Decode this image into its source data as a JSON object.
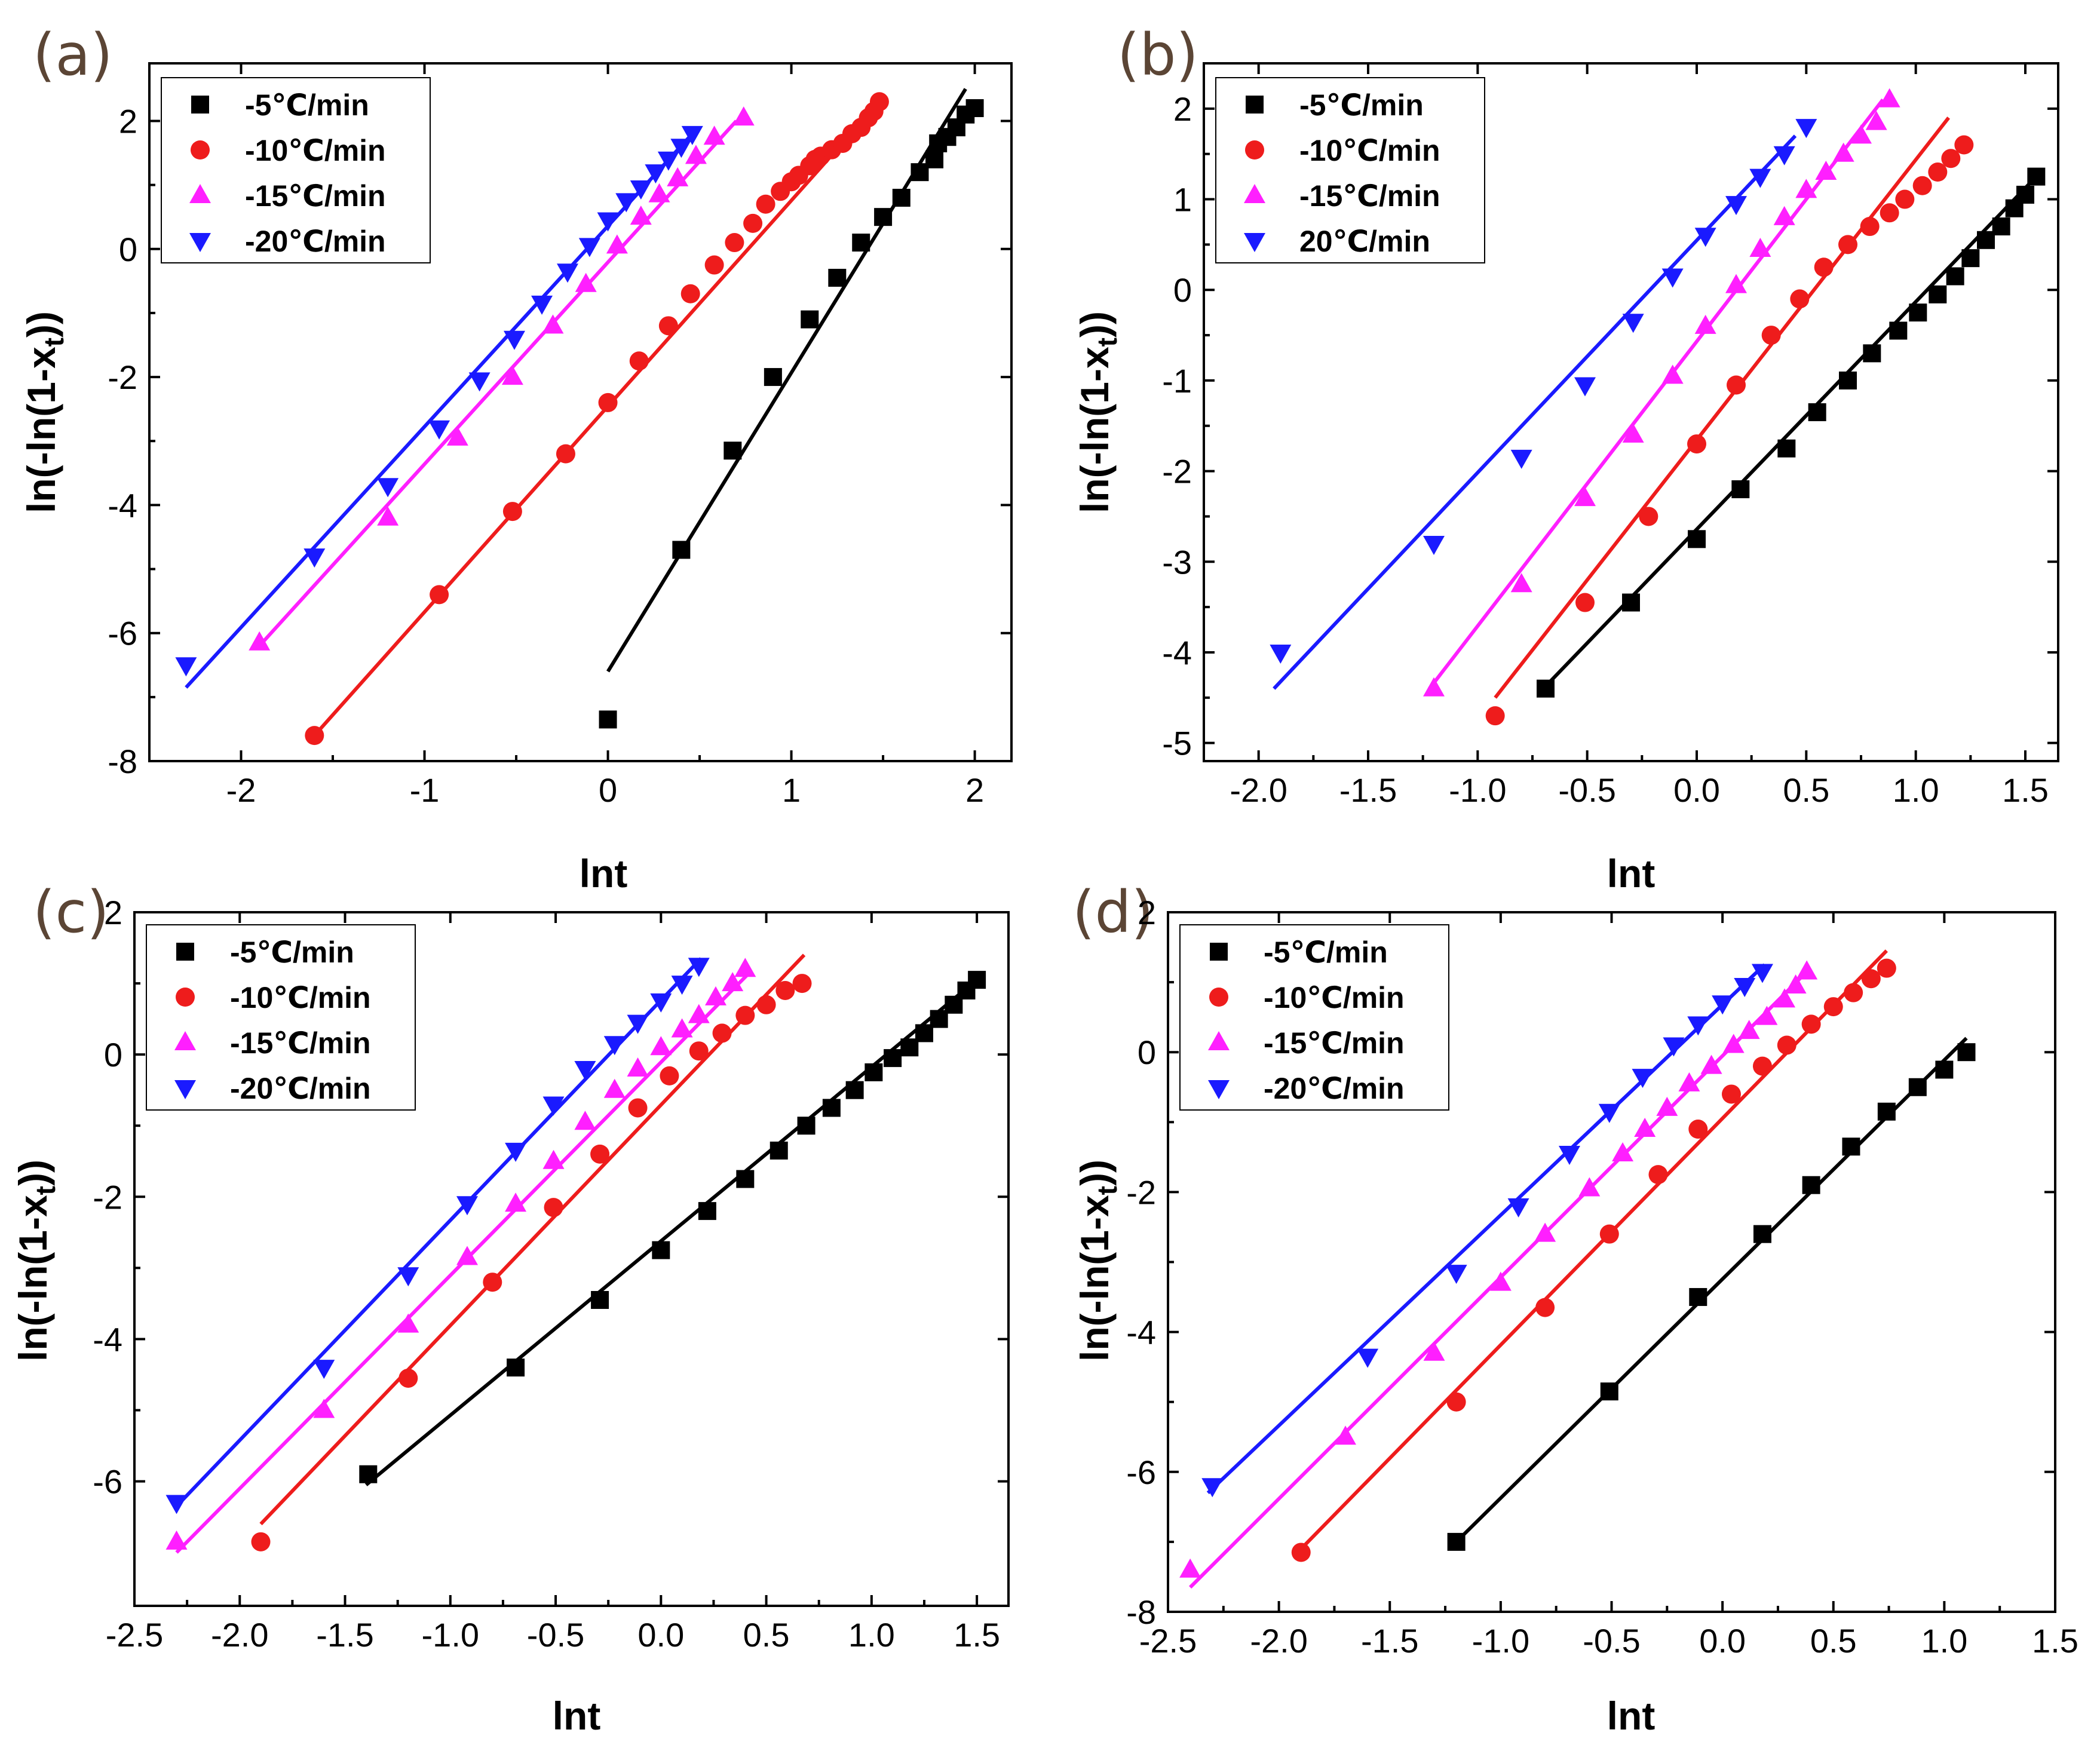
{
  "colors": {
    "black": "#000000",
    "red": "#ee1c1c",
    "magenta": "#ff1fff",
    "blue": "#1a1aff"
  },
  "chart_data": [
    {
      "type": "scatter",
      "panel": "(a)",
      "xlabel": "lnt",
      "ylabel": "ln(-ln(1-x",
      "ylabel_sub": "t",
      "ylabel_tail": "))",
      "xlim": [
        -2.5,
        2.2
      ],
      "ylim": [
        -8,
        2.9
      ],
      "xticks": [
        -2,
        -1,
        0,
        1,
        2
      ],
      "xtick_labels": [
        "-2",
        "-1",
        "0",
        "1",
        "2"
      ],
      "yticks": [
        -8,
        -6,
        -4,
        -2,
        0,
        2
      ],
      "ytick_labels": [
        "-8",
        "-6",
        "-4",
        "-2",
        "0",
        "2"
      ],
      "legend_position": "top-left",
      "series": [
        {
          "name": "-5℃/min",
          "marker": "square",
          "color": "#000000",
          "x": [
            0.0,
            0.4,
            0.68,
            0.9,
            1.1,
            1.25,
            1.38,
            1.5,
            1.6,
            1.7,
            1.78,
            1.8,
            1.85,
            1.9,
            1.95,
            2.0
          ],
          "y": [
            -7.35,
            -4.7,
            -3.15,
            -2.0,
            -1.1,
            -0.45,
            0.1,
            0.5,
            0.8,
            1.2,
            1.4,
            1.65,
            1.75,
            1.9,
            2.1,
            2.2
          ],
          "fit": {
            "x": [
              0.0,
              1.95
            ],
            "y": [
              -6.6,
              2.5
            ]
          }
        },
        {
          "name": "-10℃/min",
          "marker": "circle",
          "color": "#ee1c1c",
          "x": [
            -1.6,
            -0.92,
            -0.52,
            -0.23,
            0.0,
            0.17,
            0.33,
            0.45,
            0.58,
            0.69,
            0.79,
            0.86,
            0.94,
            1.0,
            1.04,
            1.1,
            1.13,
            1.16,
            1.22,
            1.28,
            1.33,
            1.38,
            1.42,
            1.45,
            1.48
          ],
          "y": [
            -7.6,
            -5.4,
            -4.1,
            -3.2,
            -2.4,
            -1.75,
            -1.2,
            -0.7,
            -0.25,
            0.1,
            0.4,
            0.7,
            0.9,
            1.05,
            1.15,
            1.3,
            1.4,
            1.45,
            1.55,
            1.65,
            1.8,
            1.9,
            2.05,
            2.15,
            2.3
          ],
          "fit": {
            "x": [
              -1.6,
              1.48
            ],
            "y": [
              -7.6,
              2.3
            ]
          }
        },
        {
          "name": "-15℃/min",
          "marker": "triangle-up",
          "color": "#ff1fff",
          "x": [
            -1.9,
            -1.2,
            -0.82,
            -0.52,
            -0.3,
            -0.12,
            0.05,
            0.18,
            0.28,
            0.38,
            0.48,
            0.58,
            0.74
          ],
          "y": [
            -6.15,
            -4.2,
            -2.95,
            -2.0,
            -1.2,
            -0.55,
            0.05,
            0.5,
            0.85,
            1.1,
            1.45,
            1.75,
            2.05
          ],
          "fit": {
            "x": [
              -1.9,
              0.7
            ],
            "y": [
              -6.2,
              2.0
            ]
          }
        },
        {
          "name": "-20℃/min",
          "marker": "triangle-down",
          "color": "#1a1aff",
          "x": [
            -2.3,
            -1.6,
            -1.2,
            -0.92,
            -0.7,
            -0.51,
            -0.36,
            -0.22,
            -0.1,
            0.0,
            0.1,
            0.18,
            0.26,
            0.33,
            0.4,
            0.46
          ],
          "y": [
            -6.5,
            -4.8,
            -3.7,
            -2.8,
            -2.05,
            -1.4,
            -0.85,
            -0.35,
            0.05,
            0.45,
            0.75,
            0.95,
            1.2,
            1.4,
            1.6,
            1.8
          ],
          "fit": {
            "x": [
              -2.3,
              0.46
            ],
            "y": [
              -6.85,
              1.8
            ]
          }
        }
      ]
    },
    {
      "type": "scatter",
      "panel": "(b)",
      "xlabel": "lnt",
      "ylabel": "ln(-ln(1-x",
      "ylabel_sub": "t",
      "ylabel_tail": "))",
      "xlim": [
        -2.25,
        1.65
      ],
      "ylim": [
        -5.2,
        2.5
      ],
      "xticks": [
        -2.0,
        -1.5,
        -1.0,
        -0.5,
        0.0,
        0.5,
        1.0,
        1.5
      ],
      "xtick_labels": [
        "-2.0",
        "-1.5",
        "-1.0",
        "-0.5",
        "0.0",
        "0.5",
        "1.0",
        "1.5"
      ],
      "yticks": [
        -5,
        -4,
        -3,
        -2,
        -1,
        0,
        1,
        2
      ],
      "ytick_labels": [
        "-5",
        "-4",
        "-3",
        "-2",
        "-1",
        "0",
        "1",
        "2"
      ],
      "legend_position": "top-left",
      "series": [
        {
          "name": "-5℃/min",
          "marker": "square",
          "color": "#000000",
          "x": [
            -0.69,
            -0.3,
            0.0,
            0.2,
            0.41,
            0.55,
            0.69,
            0.8,
            0.92,
            1.01,
            1.1,
            1.18,
            1.25,
            1.32,
            1.39,
            1.45,
            1.5,
            1.55
          ],
          "y": [
            -4.4,
            -3.45,
            -2.75,
            -2.2,
            -1.75,
            -1.35,
            -1.0,
            -0.7,
            -0.45,
            -0.25,
            -0.05,
            0.15,
            0.35,
            0.55,
            0.7,
            0.9,
            1.05,
            1.25
          ],
          "fit": {
            "x": [
              -0.72,
              1.55
            ],
            "y": [
              -4.45,
              1.25
            ]
          }
        },
        {
          "name": "-10℃/min",
          "marker": "circle",
          "color": "#ee1c1c",
          "x": [
            -0.92,
            -0.51,
            -0.22,
            0.0,
            0.18,
            0.34,
            0.47,
            0.58,
            0.69,
            0.79,
            0.88,
            0.95,
            1.03,
            1.1,
            1.16,
            1.22
          ],
          "y": [
            -4.7,
            -3.45,
            -2.5,
            -1.7,
            -1.05,
            -0.5,
            -0.1,
            0.25,
            0.5,
            0.7,
            0.85,
            1.0,
            1.15,
            1.3,
            1.45,
            1.6
          ],
          "fit": {
            "x": [
              -0.92,
              1.15
            ],
            "y": [
              -4.5,
              1.9
            ]
          }
        },
        {
          "name": "-15℃/min",
          "marker": "triangle-up",
          "color": "#ff1fff",
          "x": [
            -1.2,
            -0.8,
            -0.51,
            -0.29,
            -0.11,
            0.04,
            0.18,
            0.29,
            0.4,
            0.5,
            0.59,
            0.67,
            0.75,
            0.82,
            0.88
          ],
          "y": [
            -4.4,
            -3.25,
            -2.3,
            -1.6,
            -0.95,
            -0.4,
            0.05,
            0.45,
            0.8,
            1.1,
            1.3,
            1.5,
            1.7,
            1.85,
            2.1
          ],
          "fit": {
            "x": [
              -1.22,
              0.85
            ],
            "y": [
              -4.4,
              2.1
            ]
          }
        },
        {
          "name": "20℃/min",
          "marker": "triangle-down",
          "color": "#1a1aff",
          "x": [
            -1.9,
            -1.2,
            -0.8,
            -0.51,
            -0.29,
            -0.11,
            0.04,
            0.18,
            0.29,
            0.4,
            0.5
          ],
          "y": [
            -4.0,
            -2.8,
            -1.85,
            -1.05,
            -0.35,
            0.15,
            0.6,
            0.95,
            1.25,
            1.5,
            1.8
          ],
          "fit": {
            "x": [
              -1.93,
              0.45
            ],
            "y": [
              -4.4,
              1.7
            ]
          }
        }
      ]
    },
    {
      "type": "scatter",
      "panel": "(c)",
      "xlabel": "lnt",
      "ylabel": "ln(-ln(1-x",
      "ylabel_sub": "t",
      "ylabel_tail": "))",
      "xlim": [
        -2.5,
        1.65
      ],
      "ylim": [
        -7.75,
        2.0
      ],
      "xticks": [
        -2.5,
        -2.0,
        -1.5,
        -1.0,
        -0.5,
        0.0,
        0.5,
        1.0,
        1.5
      ],
      "xtick_labels": [
        "-2.5",
        "-2.0",
        "-1.5",
        "-1.0",
        "-0.5",
        "0.0",
        "0.5",
        "1.0",
        "1.5"
      ],
      "yticks": [
        -6,
        -4,
        -2,
        0,
        2
      ],
      "ytick_labels": [
        "-6",
        "-4",
        "-2",
        "0",
        "2"
      ],
      "legend_position": "top-left",
      "series": [
        {
          "name": "-5℃/min",
          "marker": "square",
          "color": "#000000",
          "x": [
            -1.39,
            -0.69,
            -0.29,
            0.0,
            0.22,
            0.4,
            0.56,
            0.69,
            0.81,
            0.92,
            1.01,
            1.1,
            1.18,
            1.25,
            1.32,
            1.39,
            1.45,
            1.5
          ],
          "y": [
            -5.9,
            -4.4,
            -3.45,
            -2.75,
            -2.2,
            -1.75,
            -1.35,
            -1.0,
            -0.75,
            -0.5,
            -0.25,
            -0.05,
            0.1,
            0.3,
            0.5,
            0.7,
            0.9,
            1.05
          ],
          "fit": {
            "x": [
              -1.4,
              1.5
            ],
            "y": [
              -6.05,
              1.05
            ]
          }
        },
        {
          "name": "-10℃/min",
          "marker": "circle",
          "color": "#ee1c1c",
          "x": [
            -1.9,
            -1.2,
            -0.8,
            -0.51,
            -0.29,
            -0.11,
            0.04,
            0.18,
            0.29,
            0.4,
            0.5,
            0.59,
            0.67
          ],
          "y": [
            -6.85,
            -4.55,
            -3.2,
            -2.15,
            -1.4,
            -0.75,
            -0.3,
            0.05,
            0.3,
            0.55,
            0.7,
            0.9,
            1.0
          ],
          "fit": {
            "x": [
              -1.9,
              0.68
            ],
            "y": [
              -6.6,
              1.4
            ]
          }
        },
        {
          "name": "-15℃/min",
          "marker": "triangle-up",
          "color": "#ff1fff",
          "x": [
            -2.3,
            -1.6,
            -1.2,
            -0.92,
            -0.69,
            -0.51,
            -0.36,
            -0.22,
            -0.11,
            0.0,
            0.1,
            0.18,
            0.26,
            0.34,
            0.4
          ],
          "y": [
            -6.85,
            -5.0,
            -3.8,
            -2.85,
            -2.1,
            -1.5,
            -0.95,
            -0.5,
            -0.2,
            0.1,
            0.35,
            0.55,
            0.8,
            1.0,
            1.2
          ],
          "fit": {
            "x": [
              -2.3,
              0.42
            ],
            "y": [
              -7.0,
              1.15
            ]
          }
        },
        {
          "name": "-20℃/min",
          "marker": "triangle-down",
          "color": "#1a1aff",
          "x": [
            -2.3,
            -1.6,
            -1.2,
            -0.92,
            -0.69,
            -0.51,
            -0.36,
            -0.22,
            -0.11,
            0.0,
            0.1,
            0.18
          ],
          "y": [
            -6.3,
            -4.4,
            -3.1,
            -2.1,
            -1.35,
            -0.7,
            -0.2,
            0.15,
            0.45,
            0.75,
            1.0,
            1.25
          ],
          "fit": {
            "x": [
              -2.3,
              0.19
            ],
            "y": [
              -6.35,
              1.35
            ]
          }
        }
      ]
    },
    {
      "type": "scatter",
      "panel": "(d)",
      "xlabel": "lnt",
      "ylabel": "ln(-ln(1-x",
      "ylabel_sub": "t",
      "ylabel_tail": "))",
      "xlim": [
        -2.5,
        1.5
      ],
      "ylim": [
        -8,
        2.0
      ],
      "xticks": [
        -2.5,
        -2.0,
        -1.5,
        -1.0,
        -0.5,
        0.0,
        0.5,
        1.0,
        1.5
      ],
      "xtick_labels": [
        "-2.5",
        "-2.0",
        "-1.5",
        "-1.0",
        "-0.5",
        "0.0",
        "0.5",
        "1.0",
        "1.5"
      ],
      "yticks": [
        -8,
        -6,
        -4,
        -2,
        0,
        2
      ],
      "ytick_labels": [
        "-8",
        "-6",
        "-4",
        "-2",
        "0",
        "2"
      ],
      "legend_position": "top-left",
      "series": [
        {
          "name": "-5℃/min",
          "marker": "square",
          "color": "#000000",
          "x": [
            -1.2,
            -0.51,
            -0.11,
            0.18,
            0.4,
            0.58,
            0.74,
            0.88,
            1.0,
            1.1
          ],
          "y": [
            -7.0,
            -4.85,
            -3.5,
            -2.6,
            -1.9,
            -1.35,
            -0.85,
            -0.5,
            -0.25,
            0.0
          ],
          "fit": {
            "x": [
              -1.2,
              1.1
            ],
            "y": [
              -7.0,
              0.2
            ]
          }
        },
        {
          "name": "-10℃/min",
          "marker": "circle",
          "color": "#ee1c1c",
          "x": [
            -1.9,
            -1.2,
            -0.8,
            -0.51,
            -0.29,
            -0.11,
            0.04,
            0.18,
            0.29,
            0.4,
            0.5,
            0.59,
            0.67,
            0.74
          ],
          "y": [
            -7.15,
            -5.0,
            -3.65,
            -2.6,
            -1.75,
            -1.1,
            -0.6,
            -0.2,
            0.1,
            0.4,
            0.65,
            0.85,
            1.05,
            1.2
          ],
          "fit": {
            "x": [
              -1.9,
              0.74
            ],
            "y": [
              -7.1,
              1.45
            ]
          }
        },
        {
          "name": "-15℃/min",
          "marker": "triangle-up",
          "color": "#ff1fff",
          "x": [
            -2.4,
            -1.7,
            -1.3,
            -1.0,
            -0.8,
            -0.6,
            -0.45,
            -0.35,
            -0.25,
            -0.15,
            -0.05,
            0.05,
            0.12,
            0.2,
            0.28,
            0.33,
            0.38
          ],
          "y": [
            -7.4,
            -5.5,
            -4.3,
            -3.3,
            -2.6,
            -1.95,
            -1.45,
            -1.1,
            -0.8,
            -0.45,
            -0.2,
            0.1,
            0.3,
            0.5,
            0.75,
            0.95,
            1.15
          ],
          "fit": {
            "x": [
              -2.4,
              0.38
            ],
            "y": [
              -7.65,
              1.15
            ]
          }
        },
        {
          "name": "-20℃/min",
          "marker": "triangle-down",
          "color": "#1a1aff",
          "x": [
            -2.3,
            -1.6,
            -1.2,
            -0.92,
            -0.69,
            -0.51,
            -0.36,
            -0.22,
            -0.11,
            0.0,
            0.1,
            0.18
          ],
          "y": [
            -6.2,
            -4.35,
            -3.15,
            -2.2,
            -1.45,
            -0.85,
            -0.35,
            0.1,
            0.4,
            0.7,
            0.95,
            1.15
          ],
          "fit": {
            "x": [
              -2.32,
              0.19
            ],
            "y": [
              -6.3,
              1.25
            ]
          }
        }
      ]
    }
  ]
}
